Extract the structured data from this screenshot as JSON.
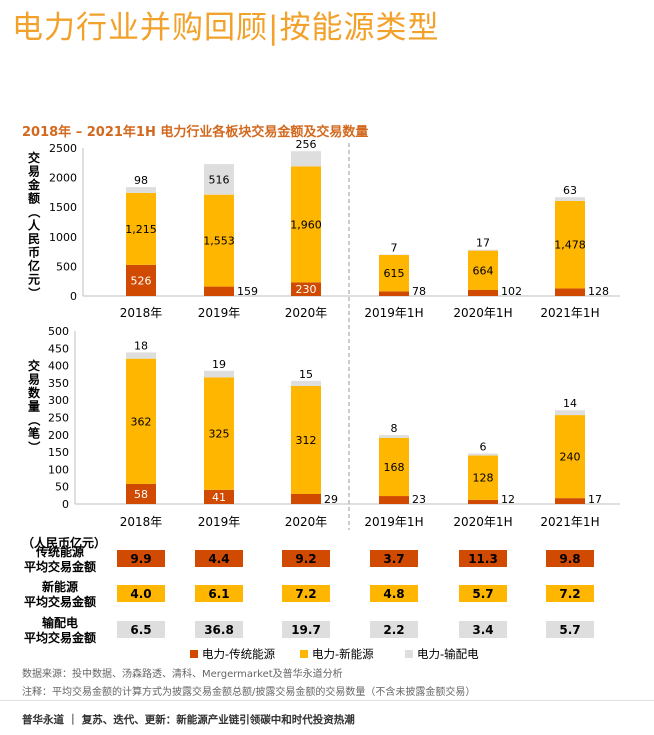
{
  "title": "电力行业并购回顾|按能源类型",
  "subtitle": "2018年 – 2021年1H 电力行业各板块交易金额及交易数量",
  "source": "数据来源：投中数据、汤森路透、清科、Mergermarket及普华永道分析",
  "note": "注释：平均交易金额的计算方式为披露交易金额总额/披露交易金额的交易数量（不含未披露金额交易）",
  "footer": "普华永道 ｜ 复苏、迭代、更新：新能源产业链引领碳中和时代投资热潮",
  "colors": {
    "traditional": "#d04a02",
    "new_energy": "#ffb600",
    "grid": "#dedede",
    "accent": "#f2a12a",
    "divider": "#999999"
  },
  "chart_data": [
    {
      "type": "bar",
      "stacked": true,
      "ylabel": "交易金额（人民币亿元）",
      "ylim": [
        0,
        2500
      ],
      "yticks": [
        "0",
        "500",
        "1000",
        "1500",
        "2000",
        "2500"
      ],
      "categories": [
        "2018年",
        "2019年",
        "2020年",
        "2019年1H",
        "2020年1H",
        "2021年1H"
      ],
      "series": [
        {
          "name": "电力-传统能源",
          "values": [
            526,
            159,
            230,
            78,
            102,
            128
          ],
          "labels": [
            "526",
            "159",
            "230",
            "78",
            "102",
            "128"
          ]
        },
        {
          "name": "电力-新能源",
          "values": [
            1215,
            1553,
            1960,
            615,
            664,
            1478
          ],
          "labels": [
            "1,215",
            "1,553",
            "1,960",
            "615",
            "664",
            "1,478"
          ]
        },
        {
          "name": "电力-输配电",
          "values": [
            98,
            516,
            256,
            7,
            17,
            63
          ],
          "labels": [
            "98",
            "516",
            "256",
            "7",
            "17",
            "63"
          ]
        }
      ]
    },
    {
      "type": "bar",
      "stacked": true,
      "ylabel": "交易数量（笔）",
      "ylim": [
        0,
        500
      ],
      "yticks": [
        "0",
        "50",
        "100",
        "150",
        "200",
        "250",
        "300",
        "350",
        "400",
        "450",
        "500"
      ],
      "categories": [
        "2018年",
        "2019年",
        "2020年",
        "2019年1H",
        "2020年1H",
        "2021年1H"
      ],
      "series": [
        {
          "name": "电力-传统能源",
          "values": [
            58,
            41,
            29,
            23,
            12,
            17
          ],
          "labels": [
            "58",
            "41",
            "29",
            "23",
            "12",
            "17"
          ]
        },
        {
          "name": "电力-新能源",
          "values": [
            362,
            325,
            312,
            168,
            128,
            240
          ],
          "labels": [
            "362",
            "325",
            "312",
            "168",
            "128",
            "240"
          ]
        },
        {
          "name": "电力-输配电",
          "values": [
            18,
            19,
            15,
            8,
            6,
            14
          ],
          "labels": [
            "18",
            "19",
            "15",
            "8",
            "6",
            "14"
          ]
        }
      ]
    },
    {
      "type": "table",
      "unit": "（人民币亿元）",
      "rows": [
        {
          "label1": "传统能源",
          "label2": "平均交易金额",
          "color": "#d04a02",
          "values": [
            "9.9",
            "4.4",
            "9.2",
            "3.7",
            "11.3",
            "9.8"
          ]
        },
        {
          "label1": "新能源",
          "label2": "平均交易金额",
          "color": "#ffb600",
          "values": [
            "4.0",
            "6.1",
            "7.2",
            "4.8",
            "5.7",
            "7.2"
          ]
        },
        {
          "label1": "输配电",
          "label2": "平均交易金额",
          "color": "#dedede",
          "values": [
            "6.5",
            "36.8",
            "19.7",
            "2.2",
            "3.4",
            "5.7"
          ]
        }
      ]
    }
  ],
  "legend": {
    "position": "bottom",
    "items": [
      "电力-传统能源",
      "电力-新能源",
      "电力-输配电"
    ]
  }
}
